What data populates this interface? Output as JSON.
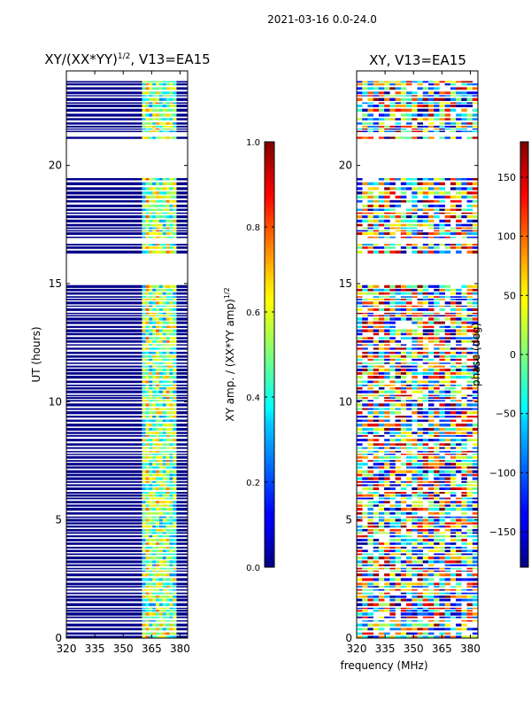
{
  "figure": {
    "suptitle": "2021-03-16 0.0-24.0",
    "shared_xlabel": "frequency (MHz)"
  },
  "chart_data": [
    {
      "type": "heatmap",
      "title": "XY/(XX*YY)^{1/2}, V13=EA15",
      "title_main": "XY/(XX*YY)",
      "title_exp": "1/2",
      "title_tail": ", V13=EA15",
      "xlabel": "",
      "ylabel": "UT (hours)",
      "xlim": [
        320,
        384
      ],
      "ylim": [
        0,
        24
      ],
      "xticks": [
        320,
        335,
        350,
        365,
        380
      ],
      "yticks": [
        0,
        5,
        10,
        15,
        20
      ],
      "colorbar": {
        "label": "XY amp. / (XX*YY amp)^{1/2}",
        "label_main": "XY amp. / (XX*YY amp)",
        "label_exp": "1/2",
        "range": [
          0.0,
          1.0
        ],
        "ticks": [
          0.0,
          0.2,
          0.4,
          0.6,
          0.8,
          1.0
        ],
        "tick_labels": [
          "0.0",
          "0.2",
          "0.4",
          "0.6",
          "0.8",
          "1.0"
        ],
        "colormap": "jet"
      },
      "data_gaps_hours": [
        [
          14.95,
          15.15
        ],
        [
          15.3,
          16.2
        ],
        [
          16.7,
          16.9
        ],
        [
          19.55,
          21.1
        ],
        [
          21.3,
          21.4
        ],
        [
          23.6,
          24.0
        ]
      ],
      "high_band_mhz": [
        360,
        378
      ]
    },
    {
      "type": "heatmap",
      "title": "XY, V13=EA15",
      "xlabel": "frequency (MHz)",
      "ylabel": "",
      "xlim": [
        320,
        384
      ],
      "ylim": [
        0,
        24
      ],
      "xticks": [
        320,
        335,
        350,
        365,
        380
      ],
      "yticks": [
        0,
        5,
        10,
        15,
        20
      ],
      "colorbar": {
        "label": "phase (deg)",
        "range": [
          -180,
          180
        ],
        "ticks": [
          -150,
          -100,
          -50,
          0,
          50,
          100,
          150
        ],
        "tick_labels": [
          "−150",
          "−100",
          "−50",
          "0",
          "50",
          "100",
          "150"
        ],
        "colormap": "jet"
      },
      "data_gaps_hours": [
        [
          14.95,
          15.15
        ],
        [
          15.3,
          16.2
        ],
        [
          16.7,
          16.9
        ],
        [
          19.55,
          21.1
        ],
        [
          21.3,
          21.4
        ],
        [
          23.6,
          24.0
        ]
      ]
    }
  ],
  "colors": {
    "frame": "#000000",
    "background": "#ffffff",
    "low_amplitude": "#00008b"
  }
}
